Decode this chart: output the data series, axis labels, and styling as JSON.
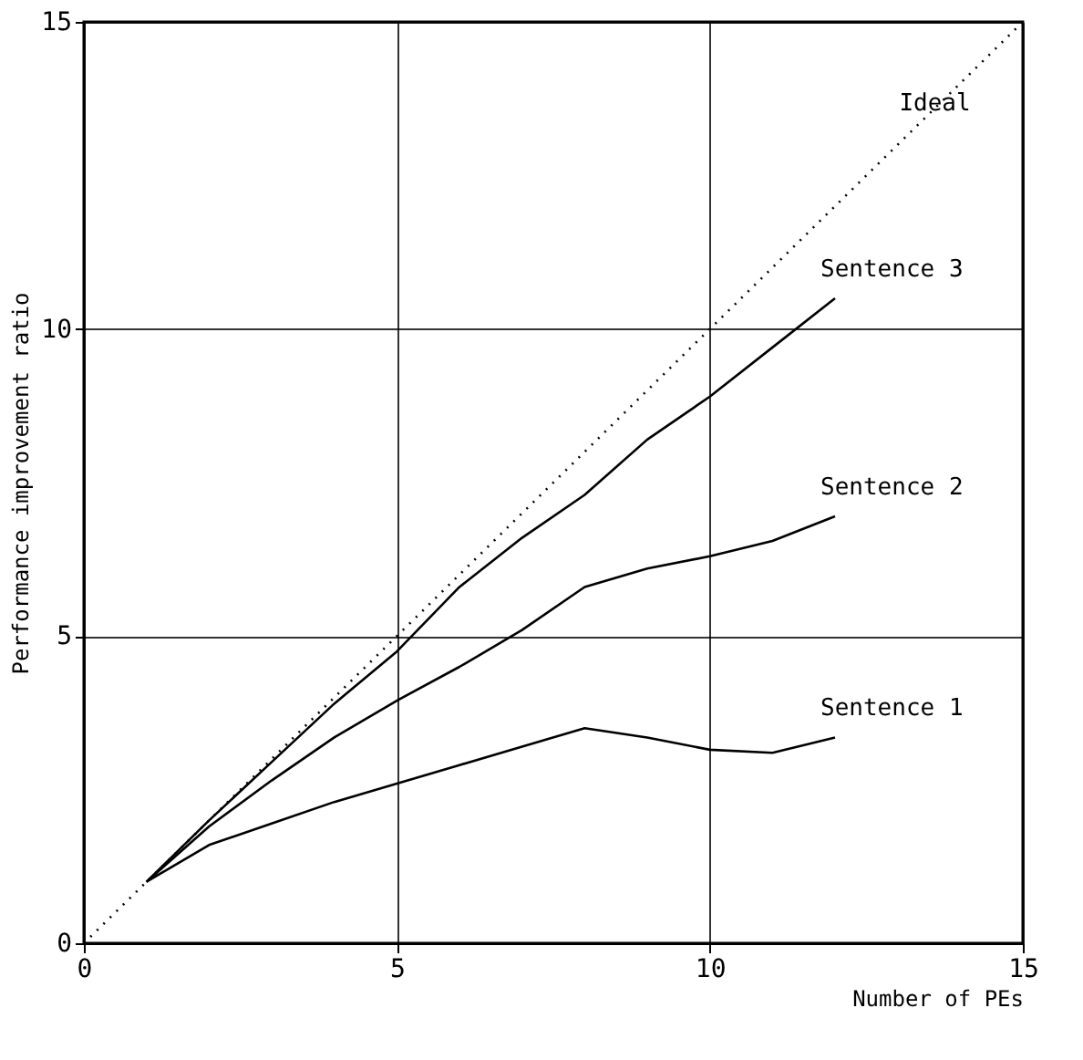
{
  "chart_data": {
    "type": "line",
    "xlabel": "Number of PEs",
    "ylabel": "Performance improvement ratio",
    "xlim": [
      0,
      15
    ],
    "ylim": [
      0,
      15
    ],
    "xticks": [
      0,
      5,
      10,
      15
    ],
    "yticks": [
      0,
      5,
      10,
      15
    ],
    "grid": true,
    "marker": "none",
    "series": [
      {
        "name": "Ideal",
        "color": "#000000",
        "line_style": "dotted",
        "x": [
          0,
          15
        ],
        "values": [
          0,
          15
        ]
      },
      {
        "name": "Sentence 3",
        "color": "#000000",
        "line_style": "solid",
        "x": [
          1,
          2,
          3,
          4,
          5,
          6,
          7,
          8,
          9,
          10,
          11,
          12
        ],
        "values": [
          1,
          2,
          2.95,
          3.9,
          4.75,
          5.8,
          6.6,
          7.3,
          8.2,
          8.9,
          9.7,
          10.5
        ]
      },
      {
        "name": "Sentence 2",
        "color": "#000000",
        "line_style": "solid",
        "x": [
          1,
          2,
          3,
          4,
          5,
          6,
          7,
          8,
          9,
          10,
          11,
          12
        ],
        "values": [
          1,
          1.9,
          2.65,
          3.35,
          3.95,
          4.5,
          5.1,
          5.8,
          6.1,
          6.3,
          6.55,
          6.95
        ]
      },
      {
        "name": "Sentence 1",
        "color": "#000000",
        "line_style": "solid",
        "x": [
          1,
          2,
          3,
          4,
          5,
          6,
          7,
          8,
          9,
          10,
          11,
          12
        ],
        "values": [
          1,
          1.6,
          1.95,
          2.3,
          2.6,
          2.9,
          3.2,
          3.5,
          3.35,
          3.15,
          3.1,
          3.35
        ]
      }
    ]
  }
}
